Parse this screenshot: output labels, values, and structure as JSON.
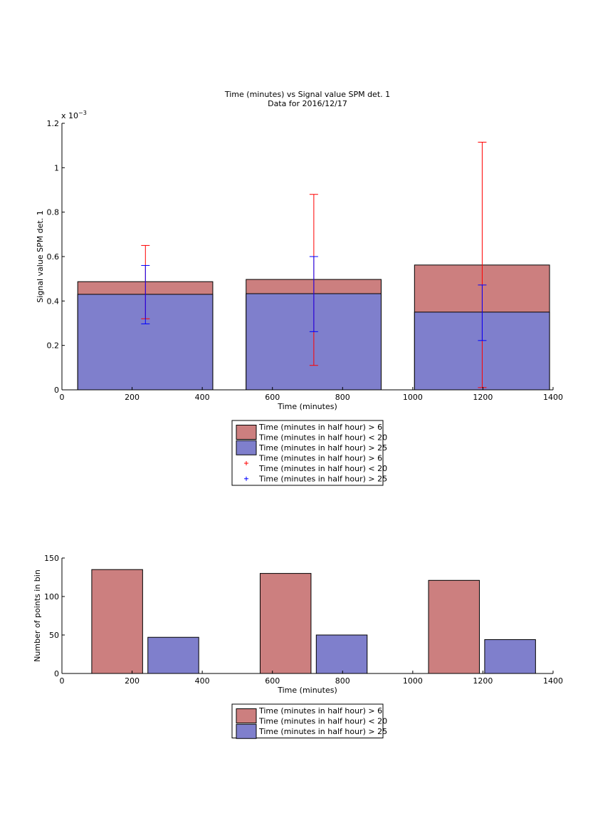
{
  "chart_data": [
    {
      "type": "bar",
      "title": "Time (minutes) vs Signal value SPM det. 1",
      "subtitle": "Data for 2016/12/17",
      "xlabel": "Time (minutes)",
      "ylabel": "Signal value SPM det. 1",
      "exponent_label": "x 10",
      "exponent_power": "−3",
      "xlim": [
        0,
        1400
      ],
      "ylim": [
        0,
        1.2
      ],
      "y_scale_factor": 0.001,
      "xticks": [
        "0",
        "200",
        "400",
        "600",
        "800",
        "1000",
        "1200",
        "1400"
      ],
      "yticks": [
        "0",
        "0.2",
        "0.4",
        "0.6",
        "0.8",
        "1",
        "1.2"
      ],
      "bins": [
        {
          "x0": 45,
          "x1": 430,
          "red_value": 0.487,
          "blue_value": 0.43
        },
        {
          "x0": 525,
          "x1": 910,
          "red_value": 0.497,
          "blue_value": 0.433
        },
        {
          "x0": 1005,
          "x1": 1390,
          "red_value": 0.562,
          "blue_value": 0.35
        }
      ],
      "error_bars": [
        {
          "series": "red",
          "x": 238,
          "low": 0.32,
          "high": 0.65
        },
        {
          "series": "blue",
          "x": 238,
          "low": 0.297,
          "high": 0.56
        },
        {
          "series": "red",
          "x": 718,
          "low": 0.11,
          "high": 0.88
        },
        {
          "series": "blue",
          "x": 718,
          "low": 0.262,
          "high": 0.6
        },
        {
          "series": "red",
          "x": 1198,
          "low": 0.01,
          "high": 1.115
        },
        {
          "series": "blue",
          "x": 1198,
          "low": 0.222,
          "high": 0.472
        }
      ],
      "legend": {
        "placement": "below",
        "entries": [
          {
            "kind": "patch",
            "color": "#cc7f7f",
            "lines": [
              "Time (minutes in half hour) > 6",
              "Time (minutes in half hour) < 20"
            ]
          },
          {
            "kind": "patch",
            "color": "#7f7fcc",
            "lines": [
              "Time (minutes in half hour) > 25"
            ]
          },
          {
            "kind": "marker",
            "color": "#ff0000",
            "lines": [
              "Time (minutes in half hour) > 6",
              "Time (minutes in half hour) < 20"
            ]
          },
          {
            "kind": "marker",
            "color": "#0000ff",
            "lines": [
              "Time (minutes in half hour) > 25"
            ]
          }
        ]
      }
    },
    {
      "type": "bar",
      "xlabel": "Time (minutes)",
      "ylabel": "Number of points in bin",
      "xlim": [
        0,
        1400
      ],
      "ylim": [
        0,
        150
      ],
      "xticks": [
        "0",
        "200",
        "400",
        "600",
        "800",
        "1000",
        "1200",
        "1400"
      ],
      "yticks": [
        "0",
        "50",
        "100",
        "150"
      ],
      "bars": [
        {
          "series": "red",
          "x0": 85,
          "x1": 230,
          "value": 135
        },
        {
          "series": "blue",
          "x0": 245,
          "x1": 390,
          "value": 47
        },
        {
          "series": "red",
          "x0": 565,
          "x1": 710,
          "value": 130
        },
        {
          "series": "blue",
          "x0": 725,
          "x1": 870,
          "value": 50
        },
        {
          "series": "red",
          "x0": 1045,
          "x1": 1190,
          "value": 121
        },
        {
          "series": "blue",
          "x0": 1205,
          "x1": 1350,
          "value": 44
        }
      ],
      "legend": {
        "placement": "below",
        "entries": [
          {
            "kind": "patch",
            "color": "#cc7f7f",
            "lines": [
              "Time (minutes in half hour) > 6",
              "Time (minutes in half hour) < 20"
            ]
          },
          {
            "kind": "patch",
            "color": "#7f7fcc",
            "lines": [
              "Time (minutes in half hour) > 25"
            ]
          }
        ]
      }
    }
  ],
  "colors": {
    "red_fill": "#cc7f7f",
    "blue_fill": "#7f7fcc",
    "red_error": "#ff0000",
    "blue_error": "#0000ff"
  }
}
